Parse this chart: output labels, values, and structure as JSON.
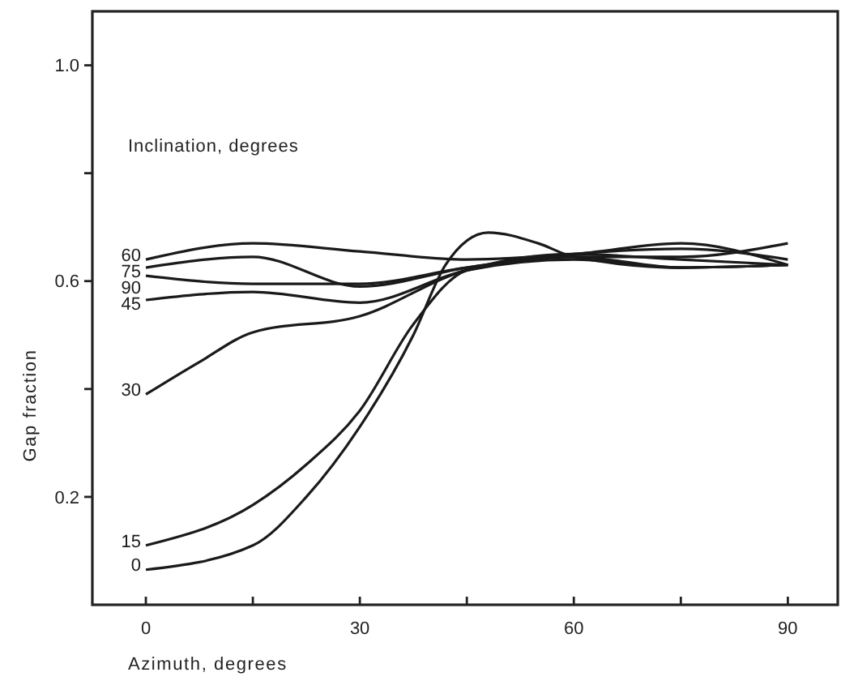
{
  "chart_data": {
    "type": "line",
    "xlabel": "Azimuth, degrees",
    "ylabel": "Gap fraction",
    "legend_title": "Inclination, degrees",
    "xlim": [
      -7.5,
      97
    ],
    "ylim": [
      0,
      1.1
    ],
    "xticks": [
      0,
      {
        "value": 15,
        "label": null
      },
      30,
      {
        "value": 45,
        "label": null
      },
      60,
      {
        "value": 75,
        "label": null
      },
      90
    ],
    "yticks": [
      0.2,
      {
        "value": 0.4,
        "label": null
      },
      0.6,
      {
        "value": 0.8,
        "label": null
      },
      {
        "value": 1.0,
        "label": "1.0"
      }
    ],
    "grid": false,
    "marker": "none",
    "line_style": "solid",
    "series": [
      {
        "name": "60",
        "color": "#1a1a1a",
        "x": [
          0,
          15,
          30,
          45,
          60,
          75,
          90
        ],
        "values": [
          0.64,
          0.67,
          0.655,
          0.64,
          0.65,
          0.67,
          0.63
        ]
      },
      {
        "name": "75",
        "color": "#1a1a1a",
        "x": [
          0,
          15,
          30,
          45,
          60,
          75,
          90
        ],
        "values": [
          0.625,
          0.645,
          0.59,
          0.625,
          0.65,
          0.66,
          0.64
        ]
      },
      {
        "name": "90",
        "color": "#1a1a1a",
        "x": [
          0,
          15,
          30,
          45,
          60,
          75,
          90
        ],
        "values": [
          0.61,
          0.595,
          0.595,
          0.625,
          0.645,
          0.645,
          0.67
        ]
      },
      {
        "name": "45",
        "color": "#1a1a1a",
        "x": [
          0,
          15,
          30,
          45,
          60,
          75,
          90
        ],
        "values": [
          0.565,
          0.58,
          0.56,
          0.62,
          0.64,
          0.625,
          0.63
        ]
      },
      {
        "name": "30",
        "color": "#1a1a1a",
        "x": [
          0,
          7.5,
          15,
          30,
          45,
          60,
          75,
          90
        ],
        "values": [
          0.39,
          0.45,
          0.505,
          0.535,
          0.62,
          0.645,
          0.625,
          0.63
        ]
      },
      {
        "name": "15",
        "color": "#1a1a1a",
        "x": [
          0,
          15,
          22.5,
          30,
          37.5,
          45,
          60,
          75,
          90
        ],
        "values": [
          0.11,
          0.185,
          0.26,
          0.36,
          0.52,
          0.62,
          0.65,
          0.64,
          0.63
        ]
      },
      {
        "name": "0",
        "color": "#1a1a1a",
        "x": [
          0,
          15,
          22.5,
          30,
          37.5,
          42,
          48,
          55,
          60,
          75,
          90
        ],
        "values": [
          0.065,
          0.11,
          0.2,
          0.33,
          0.5,
          0.63,
          0.69,
          0.67,
          0.645,
          0.625,
          0.63
        ]
      }
    ]
  }
}
